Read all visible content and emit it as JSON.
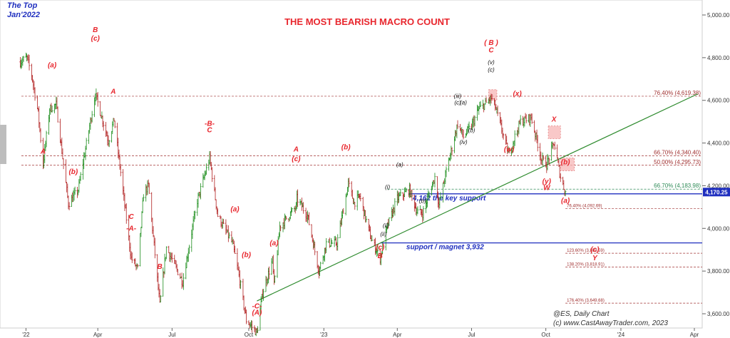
{
  "chart_data": {
    "type": "ohlc",
    "title": "THE MOST BEARISH MACRO COUNT",
    "subtitle_lines": [
      "@ES,  Daily Chart",
      "(c) www.CastAwayTrader.com, 2023"
    ],
    "corner_note": [
      "The Top",
      "Jan'2022"
    ],
    "x_tick_labels": [
      "'22",
      "Apr",
      "Jul",
      "Oct",
      "'23",
      "Apr",
      "Jul",
      "Oct",
      "'24",
      "Apr"
    ],
    "y_ticks": [
      "3,600.00",
      "3,800.00",
      "4,000.00",
      "4,200.00",
      "4,400.00",
      "4,600.00",
      "4,800.00",
      "5,000.00"
    ],
    "ylim": [
      3580,
      5040
    ],
    "last_price": "4,170.25",
    "price_path": [
      [
        "2021-12-27",
        4780
      ],
      [
        "2022-01-04",
        4800
      ],
      [
        "2022-01-10",
        4720
      ],
      [
        "2022-01-18",
        4540
      ],
      [
        "2022-01-24",
        4300
      ],
      [
        "2022-02-01",
        4560
      ],
      [
        "2022-02-09",
        4580
      ],
      [
        "2022-02-24",
        4115
      ],
      [
        "2022-03-08",
        4180
      ],
      [
        "2022-03-29",
        4630
      ],
      [
        "2022-04-14",
        4410
      ],
      [
        "2022-04-21",
        4510
      ],
      [
        "2022-05-12",
        3860
      ],
      [
        "2022-05-20",
        3810
      ],
      [
        "2022-05-27",
        4160
      ],
      [
        "2022-06-02",
        4200
      ],
      [
        "2022-06-16",
        3640
      ],
      [
        "2022-06-24",
        3910
      ],
      [
        "2022-07-14",
        3750
      ],
      [
        "2022-08-01",
        4130
      ],
      [
        "2022-08-16",
        4330
      ],
      [
        "2022-08-26",
        4060
      ],
      [
        "2022-09-13",
        3930
      ],
      [
        "2022-09-20",
        3800
      ],
      [
        "2022-09-30",
        3570
      ],
      [
        "2022-10-13",
        3510
      ],
      [
        "2022-10-20",
        3700
      ],
      [
        "2022-11-01",
        3850
      ],
      [
        "2022-11-03",
        3730
      ],
      [
        "2022-11-10",
        4010
      ],
      [
        "2022-11-30",
        4100
      ],
      [
        "2022-12-01",
        4140
      ],
      [
        "2022-12-14",
        4060
      ],
      [
        "2022-12-28",
        3800
      ],
      [
        "2023-01-06",
        3930
      ],
      [
        "2023-01-19",
        3930
      ],
      [
        "2023-02-02",
        4210
      ],
      [
        "2023-02-09",
        4120
      ],
      [
        "2023-02-16",
        4150
      ],
      [
        "2023-03-02",
        3950
      ],
      [
        "2023-03-13",
        3860
      ],
      [
        "2023-03-22",
        4010
      ],
      [
        "2023-04-03",
        4140
      ],
      [
        "2023-04-18",
        4180
      ],
      [
        "2023-04-27",
        4080
      ],
      [
        "2023-05-04",
        4070
      ],
      [
        "2023-05-19",
        4240
      ],
      [
        "2023-05-24",
        4110
      ],
      [
        "2023-06-01",
        4250
      ],
      [
        "2023-06-16",
        4490
      ],
      [
        "2023-06-23",
        4430
      ],
      [
        "2023-07-03",
        4480
      ],
      [
        "2023-07-12",
        4560
      ],
      [
        "2023-07-19",
        4580
      ],
      [
        "2023-07-27",
        4610
      ],
      [
        "2023-08-01",
        4570
      ],
      [
        "2023-08-18",
        4340
      ],
      [
        "2023-08-24",
        4420
      ],
      [
        "2023-09-01",
        4500
      ],
      [
        "2023-09-14",
        4520
      ],
      [
        "2023-09-27",
        4320
      ],
      [
        "2023-10-03",
        4300
      ],
      [
        "2023-10-12",
        4400
      ],
      [
        "2023-10-20",
        4240
      ],
      [
        "2023-10-26",
        4170
      ]
    ],
    "horizontal_lines": [
      {
        "label": "76.40% (4,619.38)",
        "value": 4619.38,
        "style": "dash-dot",
        "color": "#a03030"
      },
      {
        "label": "66.70% (4,340.40)",
        "value": 4340.4,
        "style": "dash-dot",
        "color": "#a03030"
      },
      {
        "label": "50.00% (4,295.73)",
        "value": 4295.73,
        "style": "dash-dot",
        "color": "#a03030"
      },
      {
        "label": "66.70% (4,183.98)",
        "value": 4183.98,
        "style": "dash-dot",
        "color": "#2e8b57"
      },
      {
        "label": "4,162 the key support",
        "value": 4162,
        "style": "solid",
        "color": "#1f2fbf"
      },
      {
        "label": "76.40% (4,092.69)",
        "value": 4092.69,
        "style": "dash-dot",
        "color": "#a03030"
      },
      {
        "label": "support / magnet 3,932",
        "value": 3932,
        "style": "solid",
        "color": "#1f2fbf"
      },
      {
        "label": "123.60% (3,883.59)",
        "value": 3883.59,
        "style": "dash-dot",
        "color": "#a03030"
      },
      {
        "label": "138.20% (3,818.91)",
        "value": 3818.91,
        "style": "dash-dot",
        "color": "#a03030"
      },
      {
        "label": "176.40% (3,649.68)",
        "value": 3649.68,
        "style": "dash-dot",
        "color": "#a03030"
      }
    ],
    "trendline": {
      "from": [
        "2022-10-13",
        3660
      ],
      "to": [
        "2024-04-05",
        4630
      ],
      "color": "#2e8b2e"
    },
    "wave_labels": [
      {
        "text": "A",
        "date": "2022-01-24",
        "value": 4350,
        "color": "red"
      },
      {
        "text": "(a)",
        "date": "2022-02-04",
        "value": 4755,
        "color": "red"
      },
      {
        "text": "(b)",
        "date": "2022-03-02",
        "value": 4255,
        "color": "red"
      },
      {
        "text": "B",
        "date": "2022-03-29",
        "value": 4920,
        "color": "red"
      },
      {
        "text": "(c)",
        "date": "2022-03-29",
        "value": 4880,
        "color": "red"
      },
      {
        "text": "A",
        "date": "2022-04-20",
        "value": 4630,
        "color": "red"
      },
      {
        "text": "C",
        "date": "2022-05-12",
        "value": 4045,
        "color": "red"
      },
      {
        "text": "-A-",
        "date": "2022-05-12",
        "value": 3990,
        "color": "red"
      },
      {
        "text": "B",
        "date": "2022-06-16",
        "value": 3810,
        "color": "red"
      },
      {
        "text": "-B-",
        "date": "2022-08-16",
        "value": 4480,
        "color": "red"
      },
      {
        "text": "C",
        "date": "2022-08-16",
        "value": 4450,
        "color": "red"
      },
      {
        "text": "(a)",
        "date": "2022-09-16",
        "value": 4080,
        "color": "red"
      },
      {
        "text": "(b)",
        "date": "2022-09-30",
        "value": 3865,
        "color": "red"
      },
      {
        "text": "-C-",
        "date": "2022-10-13",
        "value": 3625,
        "color": "red"
      },
      {
        "text": "(A)",
        "date": "2022-10-13",
        "value": 3595,
        "color": "red"
      },
      {
        "text": "A",
        "date": "2022-11-30",
        "value": 4360,
        "color": "red"
      },
      {
        "text": "(c)",
        "date": "2022-11-30",
        "value": 4315,
        "color": "red"
      },
      {
        "text": "(a)",
        "date": "2022-11-03",
        "value": 3920,
        "color": "red"
      },
      {
        "text": "(b)",
        "date": "2023-01-30",
        "value": 4370,
        "color": "red"
      },
      {
        "text": "(c)",
        "date": "2023-03-13",
        "value": 3900,
        "color": "red"
      },
      {
        "text": "B",
        "date": "2023-03-13",
        "value": 3860,
        "color": "red"
      },
      {
        "text": "(x)",
        "date": "2023-08-28",
        "value": 4620,
        "color": "red"
      },
      {
        "text": "(w)",
        "date": "2023-08-18",
        "value": 4360,
        "color": "red"
      },
      {
        "text": "X",
        "date": "2023-10-12",
        "value": 4500,
        "color": "red"
      },
      {
        "text": "(y)",
        "date": "2023-10-03",
        "value": 4210,
        "color": "red"
      },
      {
        "text": "W",
        "date": "2023-10-03",
        "value": 4180,
        "color": "red"
      },
      {
        "text": "(a)",
        "date": "2023-10-26",
        "value": 4120,
        "color": "red"
      },
      {
        "text": "(c)",
        "date": "2023-12-01",
        "value": 3890,
        "color": "red"
      },
      {
        "text": "Y",
        "date": "2023-12-01",
        "value": 3850,
        "color": "red"
      },
      {
        "text": "( B )",
        "date": "2023-07-27",
        "value": 4860,
        "color": "red"
      },
      {
        "text": "C",
        "date": "2023-07-27",
        "value": 4825,
        "color": "red"
      },
      {
        "text": "(v)",
        "date": "2023-07-27",
        "value": 4770,
        "color": "black"
      },
      {
        "text": "(c)",
        "date": "2023-07-27",
        "value": 4735,
        "color": "black"
      },
      {
        "text": "(iii)",
        "date": "2023-06-16",
        "value": 4610,
        "color": "black"
      },
      {
        "text": "(c)",
        "date": "2023-06-16",
        "value": 4580,
        "color": "black"
      },
      {
        "text": "(a)",
        "date": "2023-06-23",
        "value": 4580,
        "color": "black"
      },
      {
        "text": "(b)",
        "date": "2023-07-03",
        "value": 4450,
        "color": "black"
      },
      {
        "text": "(iv)",
        "date": "2023-06-23",
        "value": 4395,
        "color": "black"
      },
      {
        "text": "(a)",
        "date": "2023-04-06",
        "value": 4290,
        "color": "black"
      },
      {
        "text": "(i)",
        "date": "2023-03-22",
        "value": 4185,
        "color": "black"
      },
      {
        "text": "(b)",
        "date": "2023-05-04",
        "value": 4120,
        "color": "black"
      },
      {
        "text": "(ii)",
        "date": "2023-03-20",
        "value": 4005,
        "color": "black"
      },
      {
        "text": "(ii)",
        "date": "2023-03-17",
        "value": 3965,
        "color": "black"
      },
      {
        "text": "(b)",
        "date": "2023-10-26",
        "value": 4300,
        "color": "red"
      }
    ],
    "highlight_boxes": [
      {
        "from": "2023-07-24",
        "to": "2023-08-03",
        "y0": 4600,
        "y1": 4650
      },
      {
        "from": "2023-10-05",
        "to": "2023-10-20",
        "y0": 4420,
        "y1": 4480
      },
      {
        "from": "2023-10-20",
        "to": "2023-11-06",
        "y0": 4270,
        "y1": 4330
      }
    ]
  }
}
